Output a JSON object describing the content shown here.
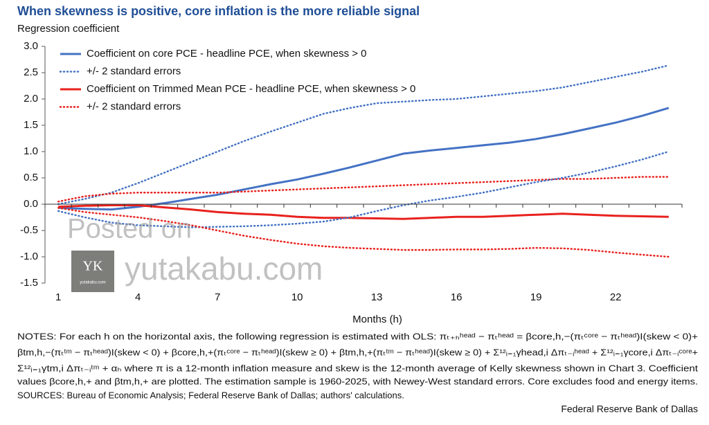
{
  "chart_data": {
    "type": "line",
    "title": "When skewness is positive, core inflation is the more reliable signal",
    "y_label": "Regression coefficient",
    "x_label": "Months (h)",
    "categories": [
      1,
      null,
      null,
      4,
      null,
      null,
      7,
      null,
      null,
      10,
      null,
      null,
      13,
      null,
      null,
      16,
      null,
      null,
      19,
      null,
      null,
      22,
      null,
      null
    ],
    "ylim": [
      -1.5,
      3.0
    ],
    "yticks": [
      {
        "value": -1.5,
        "label": "-1.5"
      },
      {
        "value": -1.0,
        "label": "-1.0"
      },
      {
        "value": -0.5,
        "label": "-0.5"
      },
      {
        "value": 0,
        "label": "0.0"
      },
      {
        "value": 0.5,
        "label": "0.5"
      },
      {
        "value": 1.0,
        "label": "1.0"
      },
      {
        "value": 1.5,
        "label": "1.5"
      },
      {
        "value": 2.0,
        "label": "2.0"
      },
      {
        "value": 2.5,
        "label": "2.5"
      },
      {
        "value": 3.0,
        "label": "3.0"
      }
    ],
    "grid": false,
    "legend": "top-left",
    "series": [
      {
        "name": "Coefficient on core PCE - headline PCE, when skewness > 0",
        "color": "#4472c4",
        "style": "solid",
        "values": [
          -0.07,
          -0.09,
          -0.1,
          -0.05,
          0.02,
          0.1,
          0.18,
          0.28,
          0.38,
          0.47,
          0.58,
          0.7,
          0.83,
          0.96,
          1.02,
          1.07,
          1.12,
          1.17,
          1.24,
          1.33,
          1.44,
          1.55,
          1.68,
          1.83
        ]
      },
      {
        "name": "+/- 2 standard errors",
        "color": "#4472c4",
        "style": "dotted",
        "values": [
          0.0,
          0.1,
          0.22,
          0.4,
          0.6,
          0.8,
          1.0,
          1.2,
          1.38,
          1.55,
          1.72,
          1.83,
          1.92,
          1.95,
          1.98,
          2.0,
          2.05,
          2.1,
          2.15,
          2.22,
          2.32,
          2.42,
          2.52,
          2.64
        ]
      },
      {
        "name": "Coefficient on Trimmed Mean PCE - headline PCE, when skewness > 0",
        "color": "#e8211d",
        "style": "solid",
        "values": [
          -0.05,
          -0.03,
          -0.02,
          -0.02,
          -0.06,
          -0.1,
          -0.15,
          -0.18,
          -0.2,
          -0.24,
          -0.26,
          -0.26,
          -0.27,
          -0.28,
          -0.26,
          -0.24,
          -0.24,
          -0.22,
          -0.2,
          -0.18,
          -0.2,
          -0.22,
          -0.23,
          -0.24
        ]
      },
      {
        "name": "+/- 2 standard errors",
        "color": "#e8211d",
        "style": "dotted",
        "values": [
          0.05,
          0.15,
          0.2,
          0.22,
          0.22,
          0.22,
          0.22,
          0.24,
          0.26,
          0.28,
          0.3,
          0.32,
          0.34,
          0.36,
          0.38,
          0.4,
          0.42,
          0.44,
          0.46,
          0.48,
          0.48,
          0.5,
          0.52,
          0.52
        ]
      }
    ],
    "extra_series_lower": [
      {
        "color": "#4472c4",
        "style": "dotted",
        "values": [
          -0.13,
          -0.25,
          -0.35,
          -0.4,
          -0.42,
          -0.44,
          -0.43,
          -0.42,
          -0.4,
          -0.37,
          -0.33,
          -0.25,
          -0.13,
          -0.02,
          0.07,
          0.14,
          0.22,
          0.32,
          0.42,
          0.5,
          0.6,
          0.72,
          0.85,
          1.0
        ]
      },
      {
        "color": "#e8211d",
        "style": "dotted",
        "values": [
          -0.07,
          -0.15,
          -0.2,
          -0.25,
          -0.32,
          -0.4,
          -0.5,
          -0.6,
          -0.68,
          -0.75,
          -0.8,
          -0.83,
          -0.85,
          -0.87,
          -0.87,
          -0.86,
          -0.86,
          -0.85,
          -0.83,
          -0.84,
          -0.87,
          -0.92,
          -0.96,
          -1.0
        ]
      }
    ],
    "notes": [
      "NOTES: For each  h on the horizontal axis, the following regression is estimated with OLS: πₜ₊ₕʰᵉᵃᵈ − πₜʰᵉᵃᵈ = βcore,h,−(πₜᶜᵒʳᵉ − πₜʰᵉᵃᵈ)I(skew < 0)+",
      "βtm,h,−(πₜᵗᵐ − πₜʰᵉᵃᵈ)I(skew < 0) + βcore,h,+(πₜᶜᵒʳᵉ − πₜʰᵉᵃᵈ)I(skew ≥ 0) + βtm,h,+(πₜᵗᵐ − πₜʰᵉᵃᵈ)I(skew ≥ 0) + Σ¹²ᵢ₌₁γhead,i Δπₜ₋ᵢʰᵉᵃᵈ + Σ¹²ᵢ₌₁γcore,i Δπₜ₋ᵢᶜᵒʳᵉ+",
      "Σ¹²ᵢ₌₁γtm,i Δπₜ₋ᵢᵗᵐ + αₕ where π is a 12-month inflation measure and skew is the 12-month average of Kelly skewness shown in Chart 3. Coefficient",
      "values  βcore,h,+ and βtm,h,+ are plotted. The estimation sample is 1960-2025, with Newey-West standard errors. Core excludes food and energy items.",
      "SOURCES: Bureau of Economic Analysis; Federal Reserve Bank of Dallas; authors' calculations."
    ],
    "credit": "Federal Reserve Bank of Dallas",
    "watermark": [
      "Posted on",
      "yutakabu.com"
    ],
    "logo": [
      "YK",
      "yutakabu.com"
    ]
  }
}
